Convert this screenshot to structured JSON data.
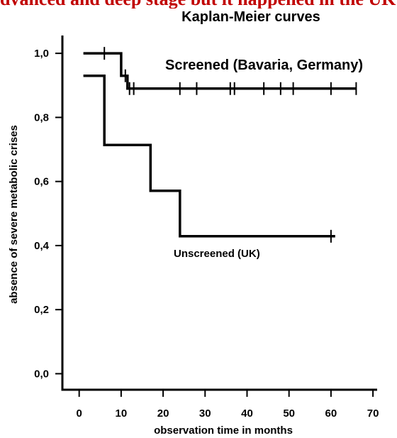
{
  "header_fragment": "dvanced and deep stage but it happened in the UK",
  "chart_data": {
    "type": "line",
    "title": "Kaplan-Meier curves",
    "xlabel": "observation time in months",
    "ylabel": "absence of severe metabolic crises",
    "xlim": [
      -4,
      71
    ],
    "ylim": [
      -0.05,
      1.1
    ],
    "x_ticks": [
      0,
      10,
      20,
      30,
      40,
      50,
      60,
      70
    ],
    "x_tick_labels": [
      "0",
      "10",
      "20",
      "30",
      "40",
      "50",
      "60",
      "70"
    ],
    "y_ticks": [
      0.0,
      0.2,
      0.4,
      0.6,
      0.8,
      1.0
    ],
    "y_tick_labels": [
      "0,0",
      "0,2",
      "0,4",
      "0,6",
      "0,8",
      "1,0"
    ],
    "grid": false,
    "series": [
      {
        "name": "Screened (Bavaria, Germany)",
        "steps": [
          [
            1,
            1.0
          ],
          [
            10,
            1.0
          ],
          [
            10,
            0.93
          ],
          [
            11.5,
            0.93
          ],
          [
            11.5,
            0.89
          ],
          [
            66,
            0.89
          ]
        ],
        "censored": [
          [
            6,
            1.0
          ],
          [
            11,
            0.93
          ],
          [
            12,
            0.89
          ],
          [
            13,
            0.89
          ],
          [
            24,
            0.89
          ],
          [
            28,
            0.89
          ],
          [
            36,
            0.89
          ],
          [
            37,
            0.89
          ],
          [
            44,
            0.89
          ],
          [
            48,
            0.89
          ],
          [
            51,
            0.89
          ],
          [
            60,
            0.89
          ],
          [
            66,
            0.89
          ]
        ]
      },
      {
        "name": "Unscreened (UK)",
        "steps": [
          [
            1,
            0.93
          ],
          [
            6,
            0.93
          ],
          [
            6,
            0.714
          ],
          [
            17,
            0.714
          ],
          [
            17,
            0.571
          ],
          [
            24,
            0.571
          ],
          [
            24,
            0.429
          ],
          [
            61,
            0.429
          ]
        ],
        "censored": [
          [
            60,
            0.429
          ]
        ]
      }
    ]
  }
}
